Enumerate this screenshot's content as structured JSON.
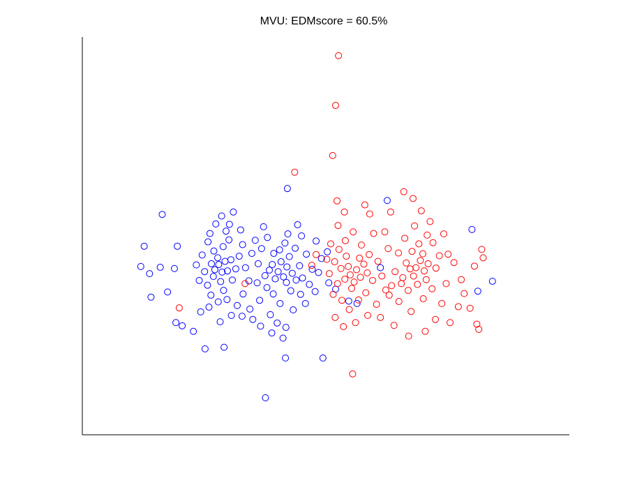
{
  "chart_data": {
    "type": "scatter",
    "title": "MVU: EDMscore = 60.5%",
    "xlim": [
      0,
      100
    ],
    "ylim": [
      0,
      100
    ],
    "series": [
      {
        "color": "#0000ff",
        "x": [
          16.4,
          42.1,
          37.6,
          49.4,
          41.7,
          80.0,
          84.2,
          81.2,
          12.0,
          13.8,
          14.1,
          19.5,
          18.9,
          12.7,
          16.0,
          17.5,
          19.2,
          20.5,
          25.2,
          29.1,
          22.8,
          24.3,
          26.0,
          26.5,
          27.2,
          28.0,
          28.7,
          29.3,
          27.8,
          26.9,
          28.4,
          29.8,
          30.5,
          27.0,
          28.9,
          30.1,
          29.5,
          27.4,
          31.0,
          30.2,
          25.8,
          24.6,
          25.1,
          25.7,
          26.4,
          27.9,
          29.0,
          30.8,
          31.5,
          32.2,
          32.9,
          33.5,
          34.2,
          33.0,
          31.8,
          30.6,
          28.3,
          34.8,
          35.5,
          36.1,
          35.9,
          34.4,
          24.0,
          23.4,
          26.2,
          28.6,
          32.5,
          36.8,
          37.5,
          36.4,
          35.0,
          32.8,
          29.7,
          40.2,
          41.3,
          42.0,
          40.8,
          39.6,
          41.9,
          43.1,
          39.0,
          42.5,
          40.5,
          41.6,
          39.3,
          38.4,
          37.9,
          39.2,
          40.6,
          42.8,
          43.9,
          44.6,
          45.2,
          43.7,
          42.2,
          44.8,
          38.6,
          40.0,
          41.8,
          43.3,
          45.8,
          46.6,
          47.2,
          46.0,
          45.0,
          44.2,
          38.0,
          37.2,
          36.6,
          38.9,
          41.2,
          47.8,
          48.5,
          49.1,
          48.0,
          50.6,
          52.0,
          54.7,
          56.4,
          61.2,
          62.6,
          50.3
        ],
        "y": [
          55.4,
          61.9,
          9.3,
          19.3,
          19.3,
          51.6,
          38.6,
          36.1,
          42.3,
          40.5,
          34.6,
          47.4,
          41.8,
          47.4,
          42.1,
          35.9,
          28.2,
          27.4,
          21.6,
          22.0,
          26.0,
          30.9,
          32.1,
          43.0,
          41.5,
          42.8,
          40.9,
          43.6,
          44.5,
          39.8,
          38.5,
          41.2,
          44.0,
          46.2,
          47.3,
          49.0,
          51.2,
          53.0,
          56.0,
          52.9,
          48.5,
          45.2,
          41.0,
          37.6,
          35.1,
          33.4,
          36.3,
          38.9,
          41.7,
          44.9,
          47.8,
          42.0,
          38.7,
          35.4,
          32.5,
          30.0,
          28.4,
          45.6,
          48.9,
          43.0,
          38.2,
          31.6,
          38.8,
          42.7,
          50.6,
          55.0,
          51.5,
          46.8,
          40.0,
          33.8,
          29.0,
          29.8,
          34.0,
          41.0,
          39.7,
          42.2,
          43.5,
          39.2,
          38.3,
          40.6,
          42.8,
          44.8,
          46.5,
          48.2,
          45.6,
          41.4,
          37.0,
          35.4,
          33.0,
          36.2,
          38.9,
          42.5,
          39.4,
          46.9,
          50.5,
          35.3,
          30.2,
          28.1,
          27.0,
          31.4,
          33.0,
          37.8,
          41.6,
          45.4,
          50.0,
          52.8,
          49.6,
          52.3,
          27.3,
          25.6,
          24.3,
          36.0,
          40.8,
          44.3,
          48.7,
          38.2,
          36.6,
          33.6,
          33.0,
          42.0,
          58.9,
          46.0
        ]
      },
      {
        "color": "#ff0000",
        "x": [
          52.6,
          52.0,
          51.4,
          43.6,
          55.5,
          19.9,
          33.4,
          48.0,
          47.1,
          55.0,
          56.3,
          57.1,
          55.8,
          54.6,
          57.8,
          56.9,
          53.9,
          58.5,
          55.3,
          54.2,
          53.1,
          52.4,
          51.8,
          52.7,
          54.0,
          55.6,
          57.3,
          58.9,
          59.6,
          58.2,
          56.7,
          54.8,
          53.3,
          51.5,
          50.7,
          50.2,
          51.0,
          52.5,
          53.8,
          52.3,
          59.8,
          60.7,
          61.5,
          62.3,
          60.4,
          58.6,
          56.1,
          53.6,
          51.9,
          68.5,
          69.4,
          70.2,
          68.0,
          69.9,
          71.0,
          67.3,
          68.8,
          70.6,
          67.7,
          66.5,
          65.8,
          66.9,
          69.1,
          70.8,
          68.2,
          66.2,
          64.9,
          64.2,
          63.5,
          65.0,
          67.5,
          70.0,
          71.8,
          72.6,
          73.3,
          72.0,
          71.4,
          69.6,
          67.9,
          66.0,
          63.3,
          62.1,
          62.8,
          74.2,
          75.1,
          74.7,
          73.8,
          72.5,
          70.4,
          67.0,
          64.0,
          61.2,
          76.3,
          77.8,
          78.4,
          79.6,
          81.0,
          81.4,
          82.0,
          82.3,
          80.5,
          75.5,
          77.2,
          63.0,
          65.5,
          59.0,
          58.0
        ],
        "y": [
          95.3,
          82.8,
          70.2,
          66.0,
          15.3,
          31.9,
          38.0,
          45.3,
          42.6,
          40.2,
          41.5,
          39.6,
          38.4,
          42.3,
          42.9,
          44.4,
          39.1,
          40.7,
          36.8,
          44.9,
          41.8,
          38.0,
          43.5,
          46.6,
          48.8,
          51.0,
          47.7,
          45.3,
          38.8,
          35.7,
          33.9,
          31.5,
          33.8,
          35.3,
          40.5,
          44.1,
          48.0,
          52.6,
          56.0,
          58.8,
          50.6,
          43.6,
          39.9,
          36.4,
          32.8,
          30.0,
          28.2,
          27.2,
          29.5,
          42.0,
          43.8,
          41.2,
          39.9,
          45.5,
          43.0,
          41.7,
          37.8,
          39.0,
          46.1,
          43.2,
          39.5,
          36.3,
          48.0,
          50.2,
          52.5,
          49.4,
          45.7,
          41.0,
          37.5,
          33.5,
          31.0,
          34.2,
          36.7,
          41.9,
          45.0,
          48.3,
          53.6,
          56.3,
          59.4,
          61.1,
          56.0,
          51.0,
          46.8,
          50.5,
          45.4,
          38.0,
          33.0,
          29.0,
          26.0,
          24.8,
          27.5,
          29.5,
          43.3,
          39.0,
          35.5,
          31.8,
          27.8,
          26.5,
          46.6,
          44.5,
          42.4,
          28.2,
          32.2,
          35.1,
          38.0,
          55.5,
          57.8
        ]
      }
    ]
  }
}
